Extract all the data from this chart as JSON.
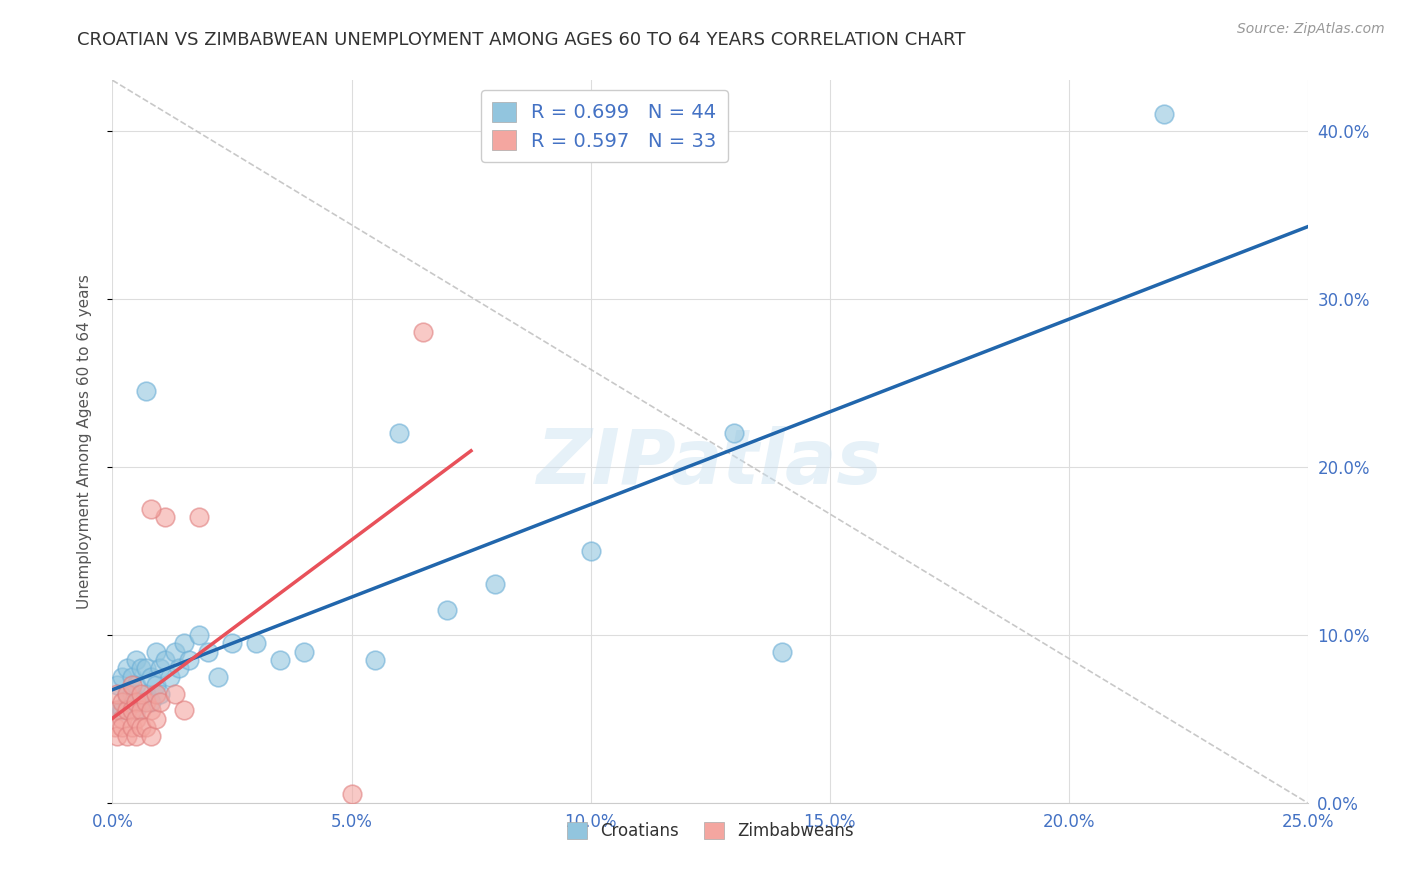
{
  "title": "CROATIAN VS ZIMBABWEAN UNEMPLOYMENT AMONG AGES 60 TO 64 YEARS CORRELATION CHART",
  "source": "Source: ZipAtlas.com",
  "ylabel": "Unemployment Among Ages 60 to 64 years",
  "xlim": [
    0.0,
    0.25
  ],
  "ylim": [
    0.0,
    0.43
  ],
  "croatian_color": "#92c5de",
  "croatian_edge_color": "#6baed6",
  "zimbabwean_color": "#f4a6a0",
  "zimbabwean_edge_color": "#e08080",
  "trendline_croatian_color": "#2166ac",
  "trendline_zimbabwean_color": "#e8515a",
  "diagonal_color": "#bbbbbb",
  "legend_R_croatian": "0.699",
  "legend_N_croatian": "44",
  "legend_R_zimbabwean": "0.597",
  "legend_N_zimbabwean": "33",
  "watermark": "ZIPatlas",
  "background_color": "#ffffff",
  "grid_color": "#dddddd",
  "x_tick_vals": [
    0.0,
    0.05,
    0.1,
    0.15,
    0.2,
    0.25
  ],
  "y_tick_vals": [
    0.0,
    0.1,
    0.2,
    0.3,
    0.4
  ],
  "tick_color": "#4472c4",
  "title_color": "#333333",
  "source_color": "#999999",
  "ylabel_color": "#555555"
}
